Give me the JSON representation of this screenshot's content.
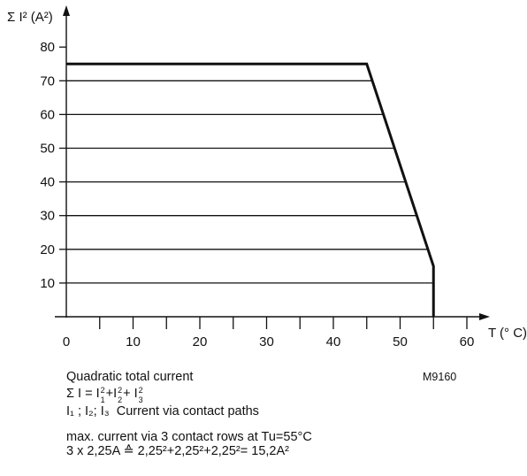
{
  "chart_data": {
    "type": "line",
    "ylabel": "Σ I² (A²)",
    "xlabel": "T (° C)",
    "x_ticks": [
      0,
      10,
      20,
      30,
      40,
      50,
      60
    ],
    "y_ticks": [
      10,
      20,
      30,
      40,
      50,
      60,
      70,
      80
    ],
    "xlim": [
      0,
      61
    ],
    "ylim": [
      0,
      82
    ],
    "grid": "horizontal lines at 10–70 up to the curve",
    "series": [
      {
        "x": [
          0,
          45,
          55,
          55
        ],
        "y": [
          75,
          75,
          15,
          0
        ]
      }
    ]
  },
  "figure_code": "M9160",
  "notes": {
    "title": "Quadratic total current",
    "formula_lhs": "Σ I",
    "formula_eq": "=",
    "formula_rhs_base": "I",
    "formula_plus": "+",
    "sub_1": "1",
    "sub_2": "2",
    "sub_3": "3",
    "exp_2": "2",
    "legend_items": "I₁ ; I₂; I₃",
    "legend_text": "Current via  contact paths",
    "max_line": "max. current via 3 contact rows at Tu=55°C",
    "calc_line": "3 x 2,25A ≙ 2,25²+2,25²+2,25²= 15,2A²"
  }
}
